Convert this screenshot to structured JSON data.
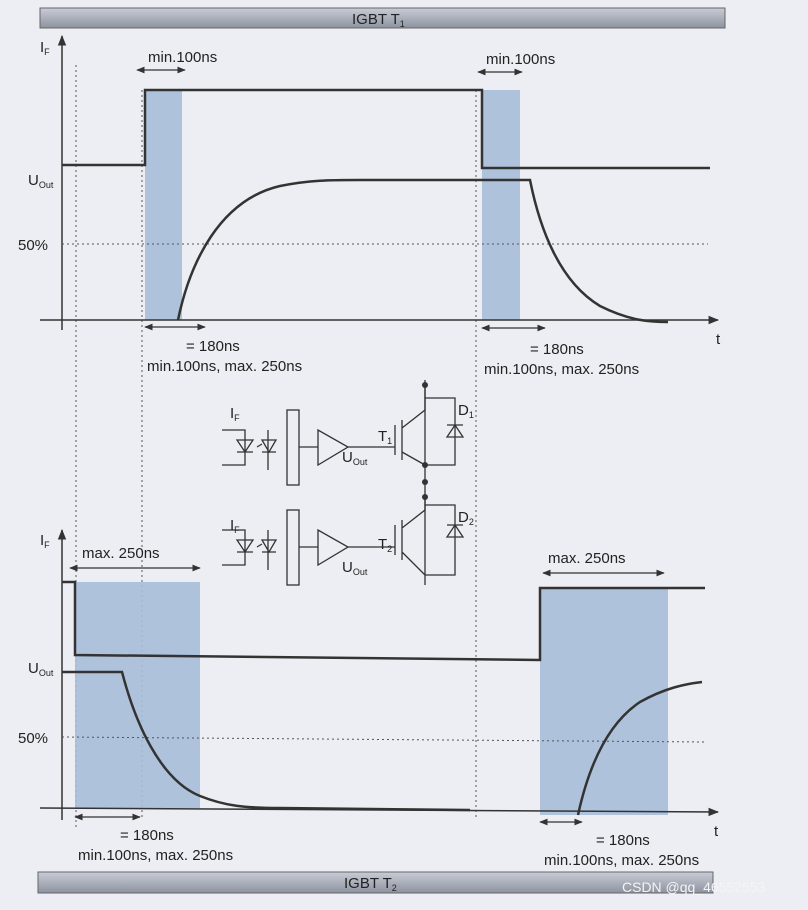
{
  "header": {
    "title": "IGBT T",
    "title_sub": "1"
  },
  "top_diagram": {
    "axis_current": "I",
    "axis_current_sub": "F",
    "axis_voltage": "U",
    "axis_voltage_sub": "Out",
    "level_50": "50%",
    "axis_time": "t",
    "rise_delay_note": "min.100ns",
    "fall_delay_note": "min.100ns",
    "rise_time": "= 180ns",
    "rise_range": "min.100ns,  max. 250ns",
    "fall_time": "= 180ns",
    "fall_range": "min.100ns,  max. 250ns"
  },
  "circuit": {
    "upper": {
      "input": "I",
      "input_sub": "F",
      "output": "U",
      "output_sub": "Out",
      "transistor": "T",
      "transistor_sub": "1",
      "diode": "D",
      "diode_sub": "1"
    },
    "lower": {
      "input": "I",
      "input_sub": "F",
      "output": "U",
      "output_sub": "Out",
      "transistor": "T",
      "transistor_sub": "2",
      "diode": "D",
      "diode_sub": "2"
    }
  },
  "bottom_diagram": {
    "axis_current": "I",
    "axis_current_sub": "F",
    "axis_voltage": "U",
    "axis_voltage_sub": "Out",
    "level_50": "50%",
    "axis_time": "t",
    "fall_delay_note": "max. 250ns",
    "rise_delay_note": "max. 250ns",
    "fall_time": "= 180ns",
    "fall_range": "min.100ns,  max. 250ns",
    "rise_time": "= 180ns",
    "rise_range": "min.100ns,  max. 250ns"
  },
  "footer": {
    "title": "IGBT T",
    "title_sub": "2"
  },
  "watermark": "CSDN @qq_46552553"
}
